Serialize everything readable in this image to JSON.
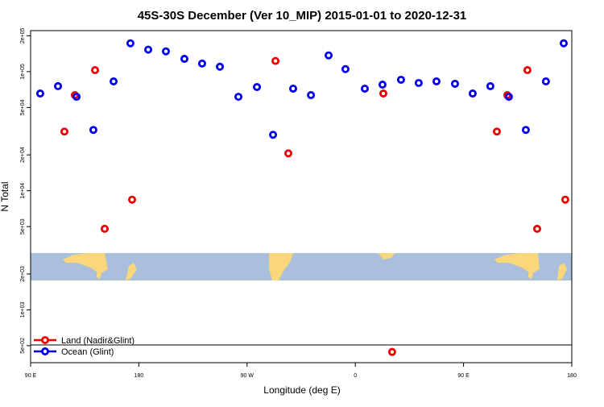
{
  "chart_data": {
    "type": "scatter",
    "title": "45S-30S December (Ver 10_MIP)   2015-01-01 to 2020-12-31",
    "x_label": "Longitude (deg E)",
    "y_label": "N Total",
    "y_scale": "log",
    "xlim": [
      90,
      540
    ],
    "ylim": [
      360,
      221000
    ],
    "xticks": [
      {
        "value": 90,
        "label": "90 E"
      },
      {
        "value": 180,
        "label": "180"
      },
      {
        "value": 270,
        "label": "90 W"
      },
      {
        "value": 360,
        "label": "0"
      },
      {
        "value": 450,
        "label": "90 E"
      },
      {
        "value": 540,
        "label": "180"
      }
    ],
    "yticks": [
      {
        "value": 500,
        "label": "5e+02"
      },
      {
        "value": 1000,
        "label": "1e+03"
      },
      {
        "value": 2000,
        "label": "2e+03"
      },
      {
        "value": 5000,
        "label": "5e+03"
      },
      {
        "value": 10000,
        "label": "1e+04"
      },
      {
        "value": 20000,
        "label": "2e+04"
      },
      {
        "value": 50000,
        "label": "5e+04"
      },
      {
        "value": 100000,
        "label": "1e+05"
      },
      {
        "value": 200000,
        "label": "2e+05"
      }
    ],
    "legend_position": "bottom-left",
    "series": [
      {
        "name": "Land (Nadir&Glint)",
        "color": "#ee0000",
        "x": [
          118.1,
          126.8,
          143.6,
          151.6,
          174.4,
          293.6,
          304.3,
          383.3,
          390.6,
          477.7,
          486.4,
          503.1,
          511.2,
          534.6
        ],
        "values": [
          31400,
          63500,
          103000,
          4790,
          8420,
          123000,
          20600,
          65500,
          443,
          31400,
          63500,
          103000,
          4790,
          8420
        ]
      },
      {
        "name": "Ocean (Glint)",
        "color": "#0000ee",
        "x": [
          98.0,
          112.8,
          128.2,
          142.2,
          159.0,
          173.0,
          187.8,
          202.5,
          217.9,
          232.6,
          247.4,
          262.8,
          278.2,
          291.6,
          308.3,
          323.1,
          337.8,
          351.8,
          367.9,
          382.6,
          398.0,
          412.7,
          427.5,
          442.9,
          457.6,
          472.3,
          487.7,
          501.8,
          518.5,
          533.3
        ],
        "values": [
          65500,
          75500,
          61500,
          32400,
          82800,
          173000,
          153000,
          148000,
          128000,
          117000,
          110000,
          61500,
          74300,
          29500,
          72000,
          63500,
          137000,
          105000,
          72000,
          77800,
          85500,
          80300,
          82800,
          79100,
          65500,
          75500,
          61500,
          32400,
          82800,
          173000
        ]
      }
    ]
  }
}
